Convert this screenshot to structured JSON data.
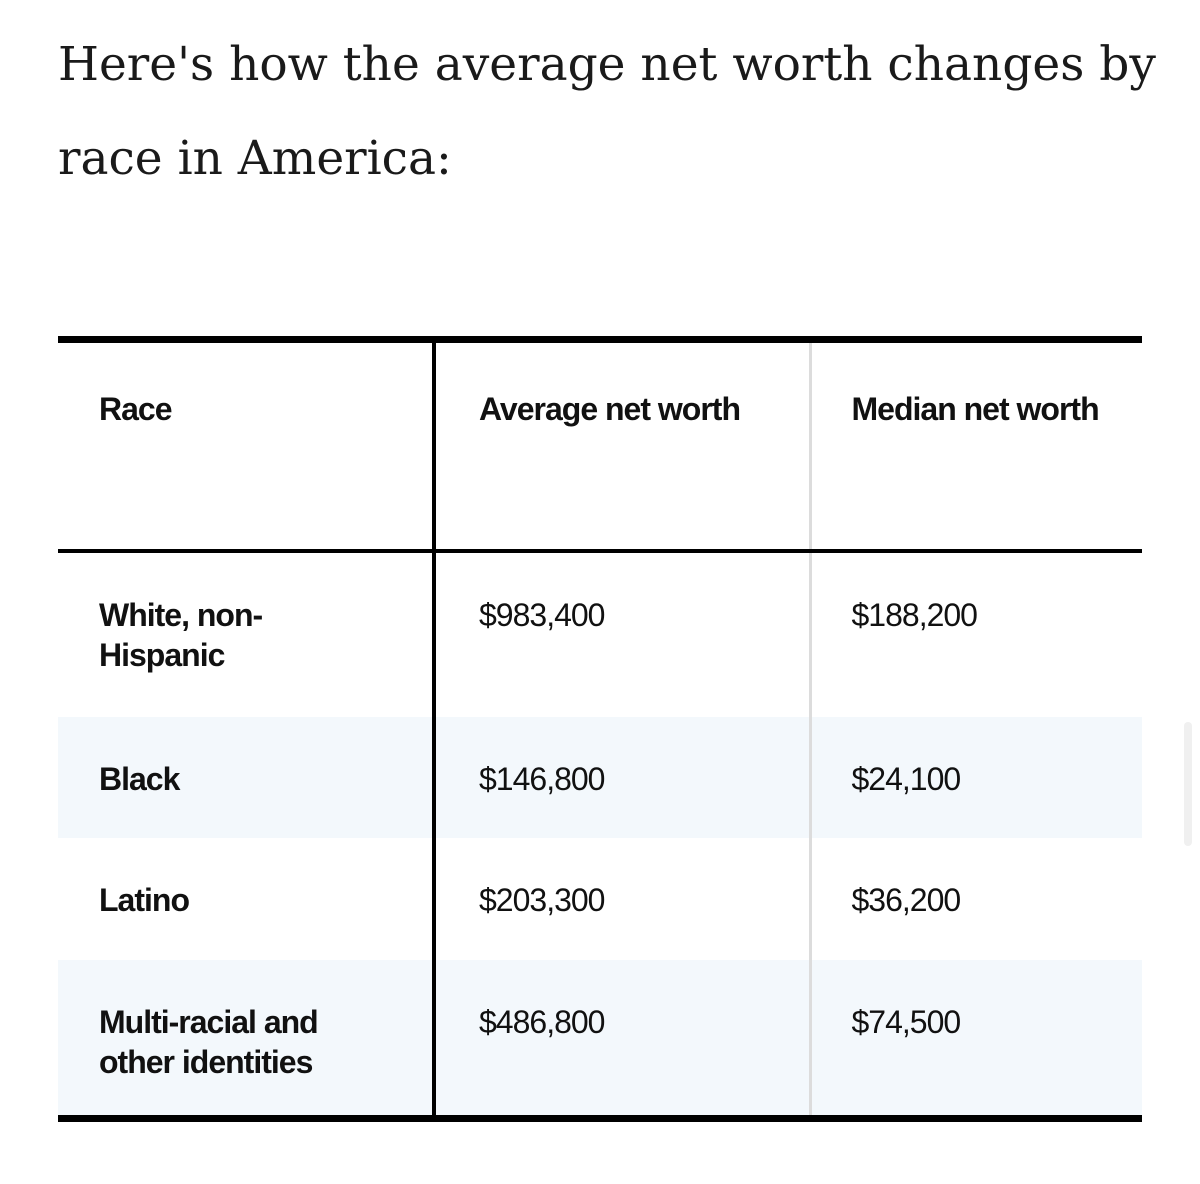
{
  "heading": "Here's how the average net worth changes by race in America:",
  "table": {
    "headers": [
      "Race",
      "Average net worth",
      "Median net worth"
    ],
    "rows": [
      {
        "race": "White, non-Hispanic",
        "average": "$983,400",
        "median": "$188,200"
      },
      {
        "race": "Black",
        "average": "$146,800",
        "median": "$24,100"
      },
      {
        "race": "Latino",
        "average": "$203,300",
        "median": "$36,200"
      },
      {
        "race": "Multi-racial and other identities",
        "average": "$486,800",
        "median": "$74,500"
      }
    ]
  },
  "colors": {
    "shaded_row": "#f3f8fc",
    "rule": "#000000",
    "divider_light": "#dcdcdc"
  }
}
